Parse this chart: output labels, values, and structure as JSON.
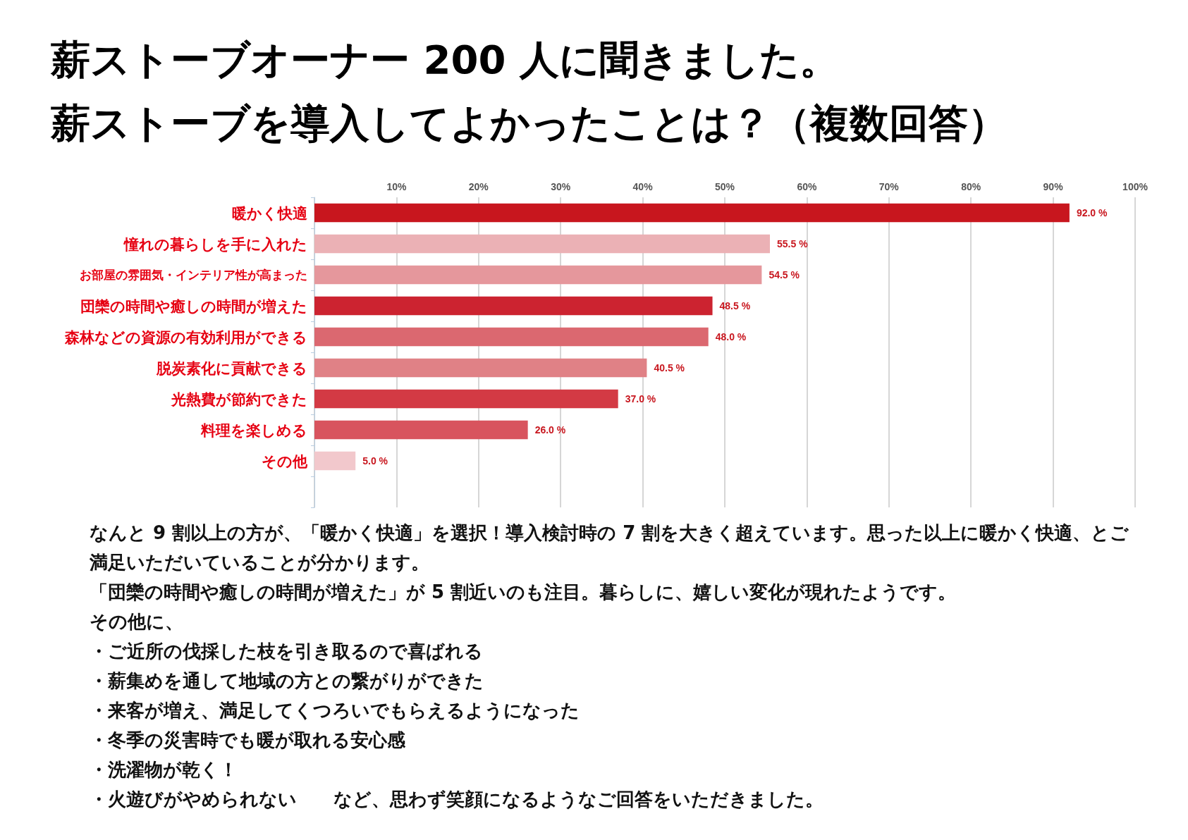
{
  "chart_data": {
    "type": "bar",
    "orientation": "horizontal",
    "title": "薪ストーブオーナー 200 人に聞きました。",
    "subtitle": "薪ストーブを導入してよかったことは？（複数回答）",
    "categories": [
      "暖かく快適",
      "憧れの暮らしを手に入れた",
      "お部屋の雰囲気・インテリア性が高まった",
      "団欒の時間や癒しの時間が増えた",
      "森林などの資源の有効利用ができる",
      "脱炭素化に貢献できる",
      "光熱費が節約できた",
      "料理を楽しめる",
      "その他",
      null
    ],
    "values": [
      92.0,
      55.5,
      54.5,
      48.5,
      48.0,
      40.5,
      37.0,
      26.0,
      5.0,
      null
    ],
    "value_labels": [
      "92.0 %",
      "55.5 %",
      "54.5 %",
      "48.5 %",
      "48.0 %",
      "40.5 %",
      "37.0 %",
      "26.0 %",
      "5.0 %",
      null
    ],
    "colors": [
      "#c8161e",
      "#ebb1b5",
      "#e5979c",
      "#cc2330",
      "#db6870",
      "#e08186",
      "#d33a44",
      "#d8545e",
      "#f2c8cc",
      "#f2c8cc"
    ],
    "xlim": [
      0,
      100
    ],
    "xticks": [
      {
        "value": 0,
        "label": null
      },
      {
        "value": 10,
        "label": "10%"
      },
      {
        "value": 20,
        "label": "20%"
      },
      {
        "value": 30,
        "label": "30%"
      },
      {
        "value": 40,
        "label": "40%"
      },
      {
        "value": 50,
        "label": "50%"
      },
      {
        "value": 60,
        "label": "60%"
      },
      {
        "value": 70,
        "label": "70%"
      },
      {
        "value": 80,
        "label": "80%"
      },
      {
        "value": 90,
        "label": "90%"
      },
      {
        "value": 100,
        "label": "100%"
      }
    ],
    "grid": "x",
    "annotations": [
      "なんと 9 割以上の方が、「暖かく快適」を選択！導入検討時の 7 割を大きく超えています。思った以上に暖かく快適、とご満足いただいていることが分かります。",
      "「団欒の時間や癒しの時間が増えた」が 5 割近いのも注目。暮らしに、嬉しい変化が現れたようです。",
      "その他に、",
      "・ご近所の伐採した枝を引き取るので喜ばれる",
      "・薪集めを通して地域の方との繋がりができた",
      "・来客が増え、満足してくつろいでもらえるようになった",
      "・冬季の災害時でも暖が取れる安心感",
      "・洗濯物が乾く！",
      "・火遊びがやめられない　　など、思わず笑顔になるようなご回答をいただきました。"
    ]
  }
}
